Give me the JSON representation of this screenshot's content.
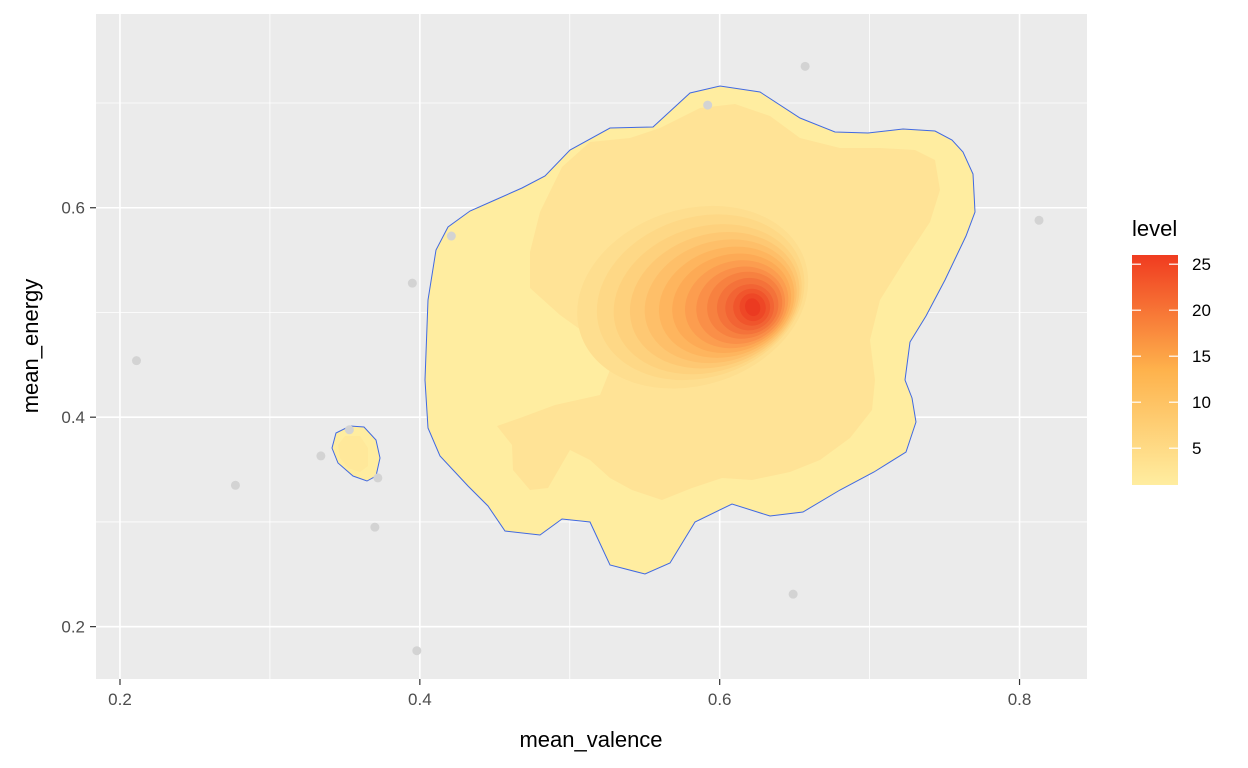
{
  "chart_data": {
    "type": "density2d_filled",
    "xlabel": "mean_valence",
    "ylabel": "mean_energy",
    "xlim": [
      0.184,
      0.845
    ],
    "ylim": [
      0.15,
      0.785
    ],
    "x_ticks": [
      0.2,
      0.4,
      0.6,
      0.8
    ],
    "x_tick_labels": [
      "0.2",
      "0.4",
      "0.6",
      "0.8"
    ],
    "x_minor_ticks": [
      0.3,
      0.5,
      0.7
    ],
    "y_ticks": [
      0.2,
      0.4,
      0.6
    ],
    "y_tick_labels": [
      "0.2",
      "0.4",
      "0.6"
    ],
    "y_minor_ticks": [
      0.3,
      0.5,
      0.7
    ],
    "points": [
      {
        "x": 0.211,
        "y": 0.454
      },
      {
        "x": 0.277,
        "y": 0.335
      },
      {
        "x": 0.334,
        "y": 0.363
      },
      {
        "x": 0.353,
        "y": 0.388
      },
      {
        "x": 0.37,
        "y": 0.295
      },
      {
        "x": 0.372,
        "y": 0.342
      },
      {
        "x": 0.395,
        "y": 0.528
      },
      {
        "x": 0.398,
        "y": 0.177
      },
      {
        "x": 0.421,
        "y": 0.573
      },
      {
        "x": 0.592,
        "y": 0.698
      },
      {
        "x": 0.649,
        "y": 0.231
      },
      {
        "x": 0.657,
        "y": 0.735
      },
      {
        "x": 0.813,
        "y": 0.588
      }
    ],
    "density_peak": {
      "x": 0.622,
      "y": 0.505,
      "level": 26
    },
    "legend": {
      "title": "level",
      "ticks": [
        5,
        10,
        15,
        20,
        25
      ],
      "tick_labels": [
        "5",
        "10",
        "15",
        "20",
        "25"
      ],
      "range": [
        1,
        26
      ],
      "colors": [
        "#FFEDA0",
        "#FEB24C",
        "#F03B20"
      ]
    },
    "colors": {
      "panel": "#EBEBEB",
      "grid": "#FFFFFF",
      "point": "#D3D3D3",
      "outline": "#4169E1"
    }
  }
}
